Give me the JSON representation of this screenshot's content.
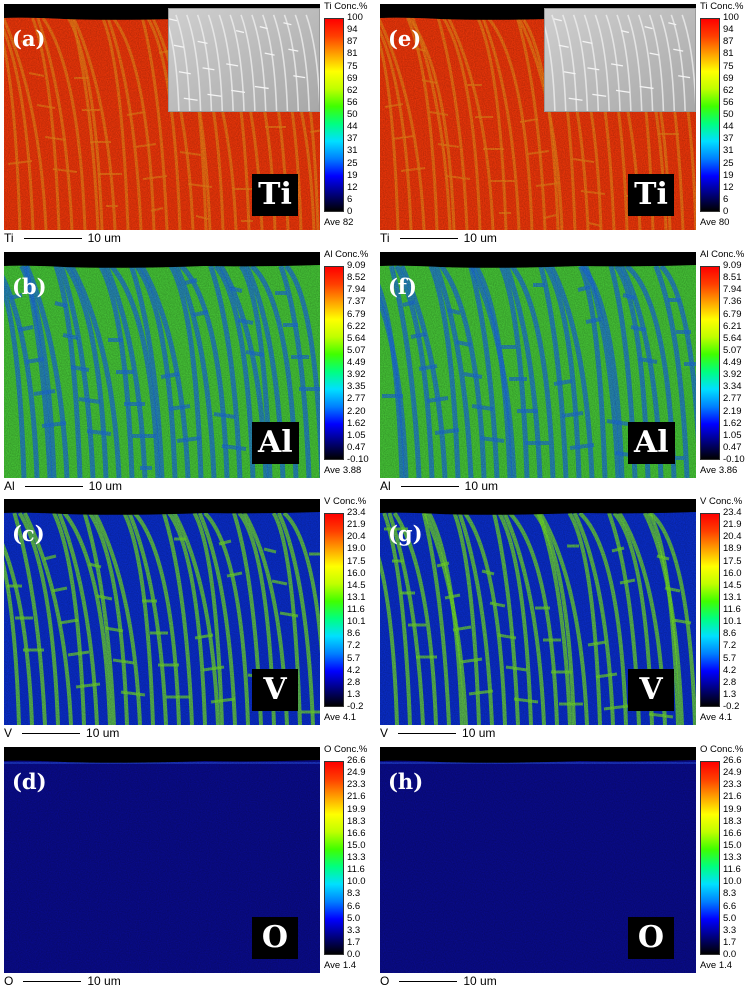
{
  "colors": {
    "Ti": "#ff3a0a",
    "Al": "#4ad23a",
    "V": "#0a30d8",
    "O": "#0a0c96",
    "surface": "#000000"
  },
  "colorbar_gradient": [
    "#000000",
    "#000080",
    "#0000ff",
    "#0080ff",
    "#00e0ff",
    "#00ff80",
    "#40ff00",
    "#c0ff00",
    "#ffff00",
    "#ffa000",
    "#ff4000",
    "#ff0000"
  ],
  "panels": [
    {
      "tag": "(a)",
      "element": "Ti",
      "cb_title": "Ti Conc.%",
      "ticks": [
        "100",
        "94",
        "87",
        "81",
        "75",
        "69",
        "62",
        "56",
        "50",
        "44",
        "37",
        "31",
        "25",
        "19",
        "12",
        "6",
        "0"
      ],
      "ave": "Ave 82",
      "scale_element": "Ti",
      "scale_text": "10 um",
      "has_inset": true
    },
    {
      "tag": "(e)",
      "element": "Ti",
      "cb_title": "Ti Conc.%",
      "ticks": [
        "100",
        "94",
        "87",
        "81",
        "75",
        "69",
        "62",
        "56",
        "50",
        "44",
        "37",
        "31",
        "25",
        "19",
        "12",
        "6",
        "0"
      ],
      "ave": "Ave 80",
      "scale_element": "Ti",
      "scale_text": "10 um",
      "has_inset": true
    },
    {
      "tag": "(b)",
      "element": "Al",
      "cb_title": "Al Conc.%",
      "ticks": [
        "9.09",
        "8.52",
        "7.94",
        "7.37",
        "6.79",
        "6.22",
        "5.64",
        "5.07",
        "4.49",
        "3.92",
        "3.35",
        "2.77",
        "2.20",
        "1.62",
        "1.05",
        "0.47",
        "-0.10"
      ],
      "ave": "Ave 3.88",
      "scale_element": "Al",
      "scale_text": "10 um",
      "has_inset": false
    },
    {
      "tag": "(f)",
      "element": "Al",
      "cb_title": "Al Conc.%",
      "ticks": [
        "9.09",
        "8.51",
        "7.94",
        "7.36",
        "6.79",
        "6.21",
        "5.64",
        "5.07",
        "4.49",
        "3.92",
        "3.34",
        "2.77",
        "2.19",
        "1.62",
        "1.05",
        "0.47",
        "-0.10"
      ],
      "ave": "Ave 3.86",
      "scale_element": "Al",
      "scale_text": "10 um",
      "has_inset": false
    },
    {
      "tag": "(c)",
      "element": "V",
      "cb_title": "V Conc.%",
      "ticks": [
        "23.4",
        "21.9",
        "20.4",
        "19.0",
        "17.5",
        "16.0",
        "14.5",
        "13.1",
        "11.6",
        "10.1",
        "8.6",
        "7.2",
        "5.7",
        "4.2",
        "2.8",
        "1.3",
        "-0.2"
      ],
      "ave": "Ave 4.1",
      "scale_element": "V",
      "scale_text": "10 um",
      "has_inset": false
    },
    {
      "tag": "(g)",
      "element": "V",
      "cb_title": "V Conc.%",
      "ticks": [
        "23.4",
        "21.9",
        "20.4",
        "18.9",
        "17.5",
        "16.0",
        "14.5",
        "13.1",
        "11.6",
        "10.1",
        "8.6",
        "7.2",
        "5.7",
        "4.2",
        "2.8",
        "1.3",
        "-0.2"
      ],
      "ave": "Ave 4.1",
      "scale_element": "V",
      "scale_text": "10 um",
      "has_inset": false
    },
    {
      "tag": "(d)",
      "element": "O",
      "cb_title": "O Conc.%",
      "ticks": [
        "26.6",
        "24.9",
        "23.3",
        "21.6",
        "19.9",
        "18.3",
        "16.6",
        "15.0",
        "13.3",
        "11.6",
        "10.0",
        "8.3",
        "6.6",
        "5.0",
        "3.3",
        "1.7",
        "0.0"
      ],
      "ave": "Ave 1.4",
      "scale_element": "O",
      "scale_text": "10 um",
      "has_inset": false
    },
    {
      "tag": "(h)",
      "element": "O",
      "cb_title": "O Conc.%",
      "ticks": [
        "26.6",
        "24.9",
        "23.3",
        "21.6",
        "19.9",
        "18.3",
        "16.6",
        "15.0",
        "13.3",
        "11.6",
        "10.0",
        "8.3",
        "6.6",
        "5.0",
        "3.3",
        "1.7",
        "0.0"
      ],
      "ave": "Ave 1.4",
      "scale_element": "O",
      "scale_text": "10 um",
      "has_inset": false
    }
  ]
}
